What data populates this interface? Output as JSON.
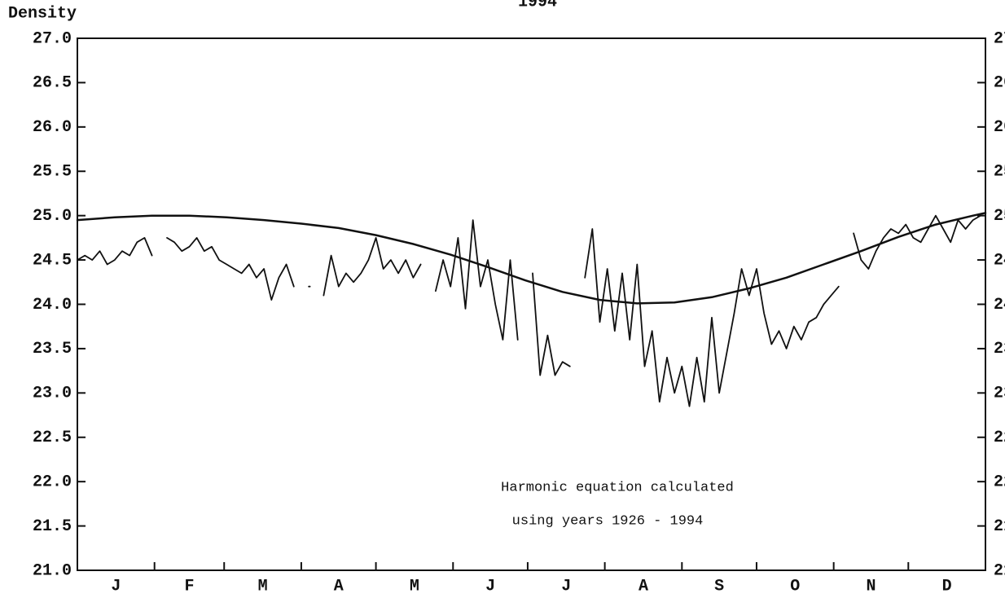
{
  "chart_data": {
    "type": "line",
    "title": "1994",
    "ylabel": "Density",
    "annotations": [
      "Harmonic equation calculated",
      "using years 1926 - 1994"
    ],
    "categories": [
      "J",
      "F",
      "M",
      "A",
      "M",
      "J",
      "J",
      "A",
      "S",
      "O",
      "N",
      "D"
    ],
    "xlim": [
      0,
      365
    ],
    "xticks": [
      31,
      59,
      90,
      120,
      151,
      181,
      212,
      243,
      273,
      304,
      334
    ],
    "ylim": [
      21,
      27
    ],
    "yticks": [
      {
        "value": 21,
        "label": "21.0"
      },
      {
        "value": 21.5,
        "label": "21.5"
      },
      {
        "value": 22,
        "label": "22.0"
      },
      {
        "value": 22.5,
        "label": "22.5"
      },
      {
        "value": 23,
        "label": "23.0"
      },
      {
        "value": 23.5,
        "label": "23.5"
      },
      {
        "value": 24,
        "label": "24.0"
      },
      {
        "value": 24.5,
        "label": "24.5"
      },
      {
        "value": 25,
        "label": "25.0"
      },
      {
        "value": 25.5,
        "label": "25.5"
      },
      {
        "value": 26,
        "label": "26.0"
      },
      {
        "value": 26.5,
        "label": "26.5"
      },
      {
        "value": 27,
        "label": "27.0"
      }
    ],
    "series": [
      {
        "color": "#111111",
        "x": [
          0,
          15,
          30,
          45,
          60,
          75,
          90,
          105,
          120,
          135,
          150,
          165,
          180,
          195,
          210,
          225,
          240,
          255,
          270,
          285,
          300,
          315,
          330,
          345,
          360,
          365
        ],
        "values": [
          24.95,
          24.98,
          25.0,
          25.0,
          24.98,
          24.95,
          24.91,
          24.86,
          24.78,
          24.68,
          24.56,
          24.42,
          24.27,
          24.14,
          24.05,
          24.01,
          24.02,
          24.08,
          24.18,
          24.3,
          24.45,
          24.6,
          24.76,
          24.9,
          25.0,
          25.03
        ]
      },
      {
        "color": "#111111",
        "x": [
          0,
          3,
          6,
          9,
          12,
          15,
          18,
          21,
          24,
          27,
          30,
          33,
          36,
          39,
          42,
          45,
          48,
          51,
          54,
          57,
          60,
          63,
          66,
          69,
          72,
          75,
          78,
          81,
          84,
          87,
          90,
          93,
          96,
          99,
          102,
          105,
          108,
          111,
          114,
          117,
          120,
          123,
          126,
          129,
          132,
          135,
          138,
          141,
          144,
          147,
          150,
          153,
          156,
          159,
          162,
          165,
          168,
          171,
          174,
          177,
          180,
          183,
          186,
          189,
          192,
          195,
          198,
          201,
          204,
          207,
          210,
          213,
          216,
          219,
          222,
          225,
          228,
          231,
          234,
          237,
          240,
          243,
          246,
          249,
          252,
          255,
          258,
          261,
          264,
          267,
          270,
          273,
          276,
          279,
          282,
          285,
          288,
          291,
          294,
          297,
          300,
          303,
          306,
          309,
          312,
          315,
          318,
          321,
          324,
          327,
          330,
          333,
          336,
          339,
          342,
          345,
          348,
          351,
          354,
          357,
          360,
          363
        ],
        "values": [
          24.5,
          24.55,
          24.5,
          24.6,
          24.45,
          24.5,
          24.6,
          24.55,
          24.7,
          24.75,
          24.55,
          null,
          24.75,
          24.7,
          24.6,
          24.65,
          24.75,
          24.6,
          24.65,
          24.5,
          24.45,
          24.4,
          24.35,
          24.45,
          24.3,
          24.4,
          24.05,
          24.3,
          24.45,
          24.2,
          null,
          24.2,
          null,
          24.1,
          24.55,
          24.2,
          24.35,
          24.25,
          24.35,
          24.5,
          24.75,
          24.4,
          24.5,
          24.35,
          24.5,
          24.3,
          24.45,
          null,
          24.15,
          24.5,
          24.2,
          24.75,
          23.95,
          24.95,
          24.2,
          24.5,
          24.0,
          23.6,
          24.5,
          23.6,
          null,
          24.35,
          23.2,
          23.65,
          23.2,
          23.35,
          23.3,
          null,
          24.3,
          24.85,
          23.8,
          24.4,
          23.7,
          24.35,
          23.6,
          24.45,
          23.3,
          23.7,
          22.9,
          23.4,
          23.0,
          23.3,
          22.85,
          23.4,
          22.9,
          23.85,
          23.0,
          23.45,
          23.9,
          24.4,
          24.1,
          24.4,
          23.9,
          23.55,
          23.7,
          23.5,
          23.75,
          23.6,
          23.8,
          23.85,
          24.0,
          24.1,
          24.2,
          null,
          24.8,
          24.5,
          24.4,
          24.6,
          24.75,
          24.85,
          24.8,
          24.9,
          24.75,
          24.7,
          24.85,
          25.0,
          24.85,
          24.7,
          24.95,
          24.85,
          24.95,
          25.0
        ]
      }
    ]
  }
}
